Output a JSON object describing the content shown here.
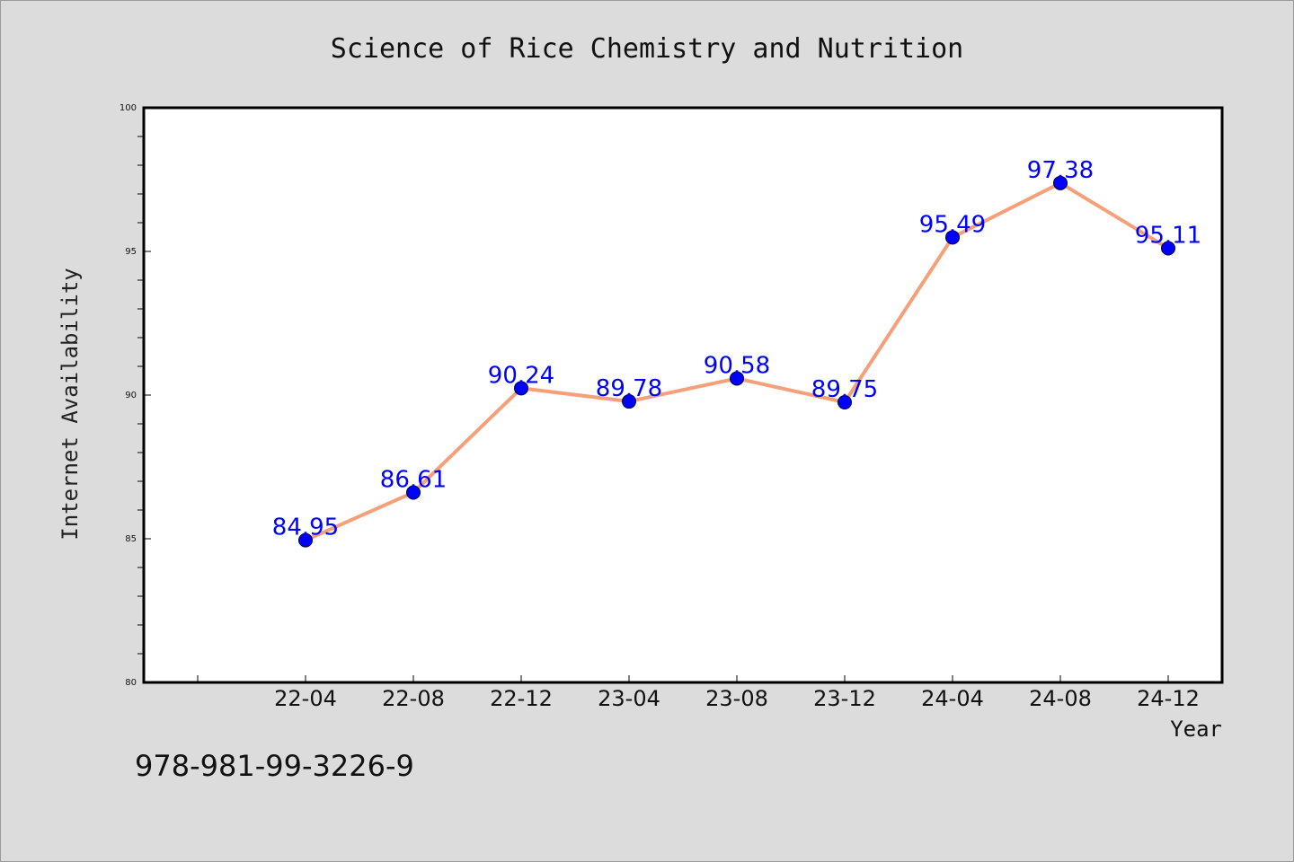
{
  "chart_data": {
    "type": "line",
    "title": "Science of Rice Chemistry and Nutrition",
    "xlabel": "Year",
    "ylabel": "Internet Availability",
    "categories": [
      "22-04",
      "22-08",
      "22-12",
      "23-04",
      "23-08",
      "23-12",
      "24-04",
      "24-08",
      "24-12"
    ],
    "series": [
      {
        "values": [
          84.95,
          86.61,
          90.24,
          89.78,
          90.58,
          89.75,
          95.49,
          97.38,
          95.11
        ],
        "value_labels": [
          "84.95",
          "86.61",
          "90.24",
          "89.78",
          "90.58",
          "89.75",
          "95.49",
          "97.38",
          "95.11"
        ],
        "line_color": "#f4a07a",
        "marker_color": "#0000ff"
      }
    ],
    "ylim": [
      80,
      100
    ],
    "yticks": [
      "80",
      "85",
      "90",
      "95",
      "100"
    ],
    "grid": false,
    "legend": "none"
  },
  "footer": {
    "isbn": "978-981-99-3226-9"
  },
  "colors": {
    "background": "#dcdcdc",
    "plot_area": "#ffffff"
  }
}
